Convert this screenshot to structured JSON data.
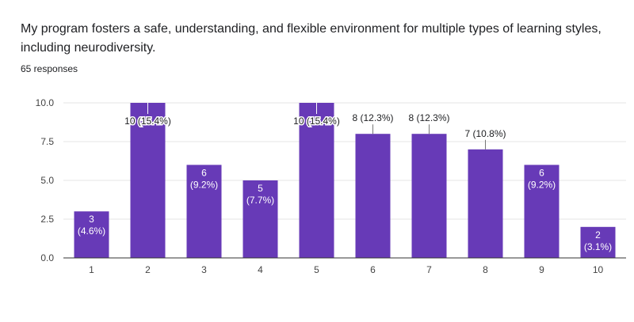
{
  "header": {
    "question": "My program fosters a safe, understanding, and flexible environment for multiple types of learning styles, including neurodiversity.",
    "responses": "65 responses"
  },
  "colors": {
    "bar": "#673ab7",
    "grid": "#e6e6e6",
    "axis": "#333333",
    "label_inside": "#ffffff",
    "label_outside": "#202124"
  },
  "chart_data": {
    "type": "bar",
    "categories": [
      "1",
      "2",
      "3",
      "4",
      "5",
      "6",
      "7",
      "8",
      "9",
      "10"
    ],
    "values": [
      3,
      10,
      6,
      5,
      10,
      8,
      8,
      7,
      6,
      2
    ],
    "labels": [
      "3\n(4.6%)",
      "10 (15.4%)",
      "6\n(9.2%)",
      "5\n(7.7%)",
      "10 (15.4%)",
      "8 (12.3%)",
      "8 (12.3%)",
      "7 (10.8%)",
      "6\n(9.2%)",
      "2\n(3.1%)"
    ],
    "ylim": [
      0,
      10
    ],
    "yticks": [
      "0.0",
      "2.5",
      "5.0",
      "7.5",
      "10.0"
    ],
    "grid": true,
    "legend": false
  }
}
